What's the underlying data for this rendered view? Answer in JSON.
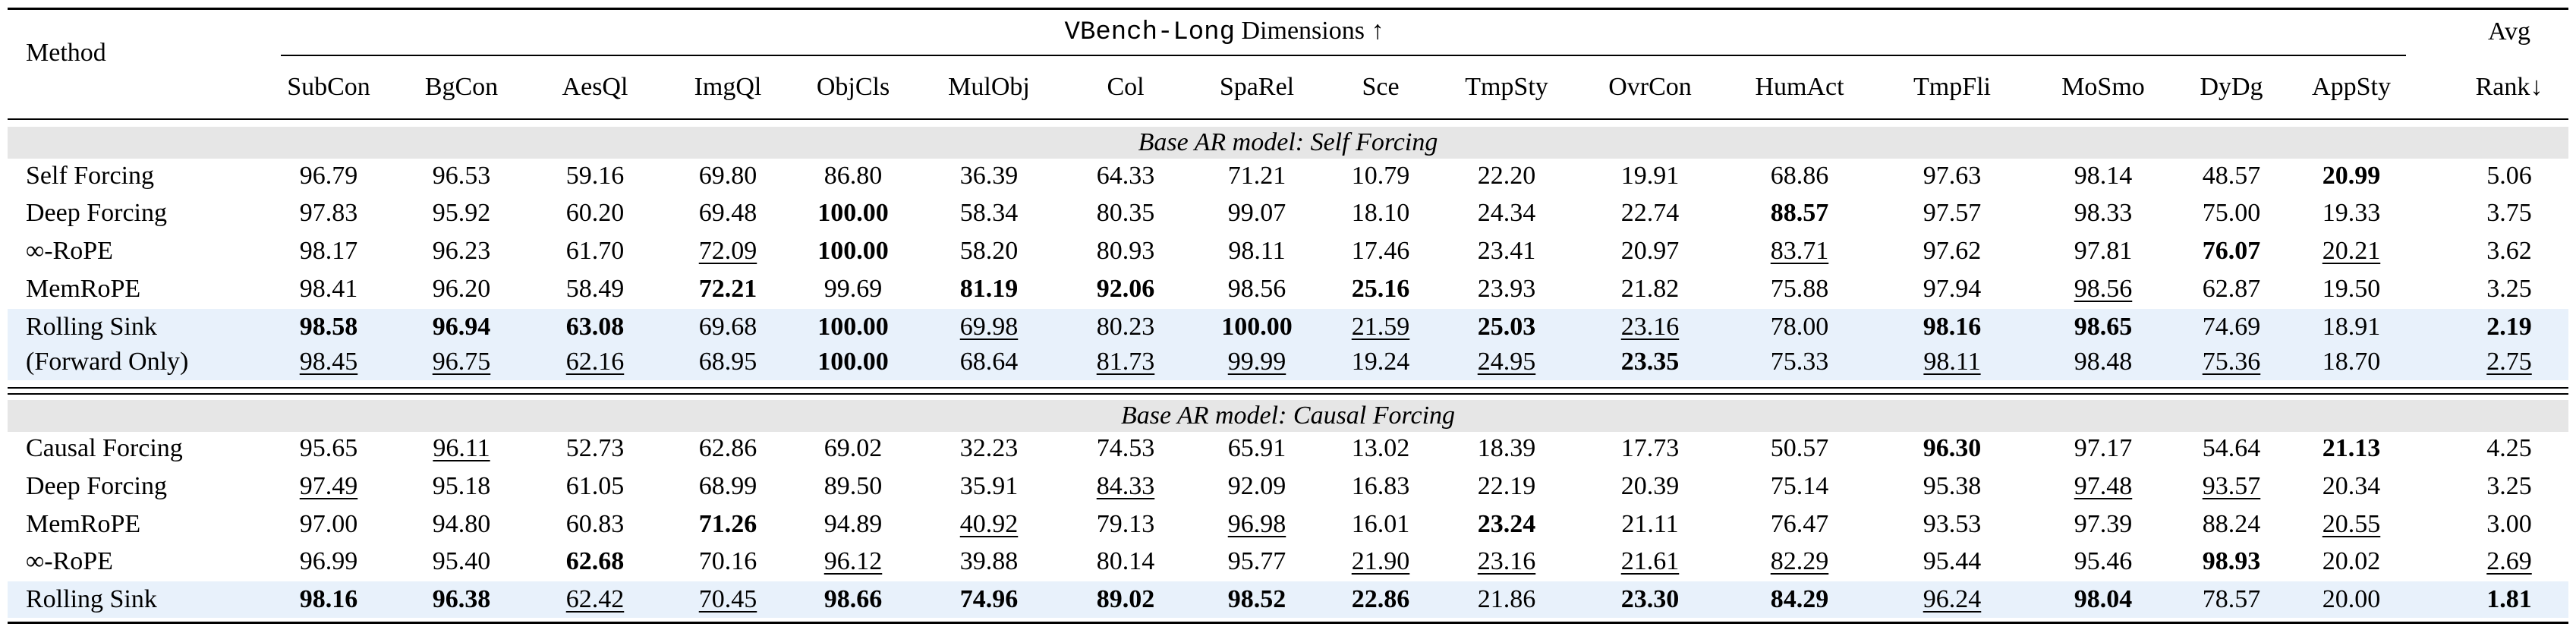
{
  "header": {
    "method": "Method",
    "group_mono": "VBench-Long",
    "group_rest": "Dimensions ↑",
    "avg_line1": "Avg",
    "avg_line2": "Rank↓",
    "columns": [
      "SubCon",
      "BgCon",
      "AesQl",
      "ImgQl",
      "ObjCls",
      "MulObj",
      "Col",
      "SpaRel",
      "Sce",
      "TmpSty",
      "OvrCon",
      "HumAct",
      "TmpFli",
      "MoSmo",
      "DyDg",
      "AppSty"
    ]
  },
  "sections": [
    {
      "title": "Base AR model: Self Forcing",
      "rows": [
        {
          "method": "Self Forcing",
          "values": [
            "96.79",
            "96.53",
            "59.16",
            "69.80",
            "86.80",
            "36.39",
            "64.33",
            "71.21",
            "10.79",
            "22.20",
            "19.91",
            "68.86",
            "97.63",
            "98.14",
            "48.57",
            "20.99"
          ],
          "avg_rank": "5.06",
          "highlight": false,
          "emphasis": [
            "normal",
            "normal",
            "normal",
            "normal",
            "normal",
            "normal",
            "normal",
            "normal",
            "normal",
            "normal",
            "normal",
            "normal",
            "normal",
            "normal",
            "normal",
            "bold",
            "normal"
          ]
        },
        {
          "method": "Deep Forcing",
          "values": [
            "97.83",
            "95.92",
            "60.20",
            "69.48",
            "100.00",
            "58.34",
            "80.35",
            "99.07",
            "18.10",
            "24.34",
            "22.74",
            "88.57",
            "97.57",
            "98.33",
            "75.00",
            "19.33"
          ],
          "avg_rank": "3.75",
          "highlight": false,
          "emphasis": [
            "normal",
            "normal",
            "normal",
            "normal",
            "bold",
            "normal",
            "normal",
            "normal",
            "normal",
            "normal",
            "normal",
            "bold",
            "normal",
            "normal",
            "normal",
            "normal",
            "normal"
          ]
        },
        {
          "method": "∞-RoPE",
          "values": [
            "98.17",
            "96.23",
            "61.70",
            "72.09",
            "100.00",
            "58.20",
            "80.93",
            "98.11",
            "17.46",
            "23.41",
            "20.97",
            "83.71",
            "97.62",
            "97.81",
            "76.07",
            "20.21"
          ],
          "avg_rank": "3.62",
          "highlight": false,
          "emphasis": [
            "normal",
            "normal",
            "normal",
            "underline",
            "bold",
            "normal",
            "normal",
            "normal",
            "normal",
            "normal",
            "normal",
            "underline",
            "normal",
            "normal",
            "bold",
            "underline",
            "normal"
          ]
        },
        {
          "method": "MemRoPE",
          "values": [
            "98.41",
            "96.20",
            "58.49",
            "72.21",
            "99.69",
            "81.19",
            "92.06",
            "98.56",
            "25.16",
            "23.93",
            "21.82",
            "75.88",
            "97.94",
            "98.56",
            "62.87",
            "19.50"
          ],
          "avg_rank": "3.25",
          "highlight": false,
          "emphasis": [
            "normal",
            "normal",
            "normal",
            "bold",
            "normal",
            "bold",
            "bold",
            "normal",
            "bold",
            "normal",
            "normal",
            "normal",
            "normal",
            "underline",
            "normal",
            "normal",
            "normal"
          ]
        },
        {
          "method": "Rolling Sink",
          "values": [
            "98.58",
            "96.94",
            "63.08",
            "69.68",
            "100.00",
            "69.98",
            "80.23",
            "100.00",
            "21.59",
            "25.03",
            "23.16",
            "78.00",
            "98.16",
            "98.65",
            "74.69",
            "18.91"
          ],
          "avg_rank": "2.19",
          "highlight": true,
          "emphasis": [
            "bold",
            "bold",
            "bold",
            "normal",
            "bold",
            "underline",
            "normal",
            "bold",
            "underline",
            "bold",
            "underline",
            "normal",
            "bold",
            "bold",
            "normal",
            "normal",
            "bold"
          ]
        },
        {
          "method": "(Forward Only)",
          "values": [
            "98.45",
            "96.75",
            "62.16",
            "68.95",
            "100.00",
            "68.64",
            "81.73",
            "99.99",
            "19.24",
            "24.95",
            "23.35",
            "75.33",
            "98.11",
            "98.48",
            "75.36",
            "18.70"
          ],
          "avg_rank": "2.75",
          "highlight": true,
          "emphasis": [
            "underline",
            "underline",
            "underline",
            "normal",
            "bold",
            "normal",
            "underline",
            "underline",
            "normal",
            "underline",
            "bold",
            "normal",
            "underline",
            "normal",
            "underline",
            "normal",
            "underline"
          ]
        }
      ]
    },
    {
      "title": "Base AR model: Causal Forcing",
      "rows": [
        {
          "method": "Causal Forcing",
          "values": [
            "95.65",
            "96.11",
            "52.73",
            "62.86",
            "69.02",
            "32.23",
            "74.53",
            "65.91",
            "13.02",
            "18.39",
            "17.73",
            "50.57",
            "96.30",
            "97.17",
            "54.64",
            "21.13"
          ],
          "avg_rank": "4.25",
          "highlight": false,
          "emphasis": [
            "normal",
            "underline",
            "normal",
            "normal",
            "normal",
            "normal",
            "normal",
            "normal",
            "normal",
            "normal",
            "normal",
            "normal",
            "bold",
            "normal",
            "normal",
            "bold",
            "normal"
          ]
        },
        {
          "method": "Deep Forcing",
          "values": [
            "97.49",
            "95.18",
            "61.05",
            "68.99",
            "89.50",
            "35.91",
            "84.33",
            "92.09",
            "16.83",
            "22.19",
            "20.39",
            "75.14",
            "95.38",
            "97.48",
            "93.57",
            "20.34"
          ],
          "avg_rank": "3.25",
          "highlight": false,
          "emphasis": [
            "underline",
            "normal",
            "normal",
            "normal",
            "normal",
            "normal",
            "underline",
            "normal",
            "normal",
            "normal",
            "normal",
            "normal",
            "normal",
            "underline",
            "underline",
            "normal",
            "normal"
          ]
        },
        {
          "method": "MemRoPE",
          "values": [
            "97.00",
            "94.80",
            "60.83",
            "71.26",
            "94.89",
            "40.92",
            "79.13",
            "96.98",
            "16.01",
            "23.24",
            "21.11",
            "76.47",
            "93.53",
            "97.39",
            "88.24",
            "20.55"
          ],
          "avg_rank": "3.00",
          "highlight": false,
          "emphasis": [
            "normal",
            "normal",
            "normal",
            "bold",
            "normal",
            "underline",
            "normal",
            "underline",
            "normal",
            "bold",
            "normal",
            "normal",
            "normal",
            "normal",
            "normal",
            "underline",
            "normal"
          ]
        },
        {
          "method": "∞-RoPE",
          "values": [
            "96.99",
            "95.40",
            "62.68",
            "70.16",
            "96.12",
            "39.88",
            "80.14",
            "95.77",
            "21.90",
            "23.16",
            "21.61",
            "82.29",
            "95.44",
            "95.46",
            "98.93",
            "20.02"
          ],
          "avg_rank": "2.69",
          "highlight": false,
          "emphasis": [
            "normal",
            "normal",
            "bold",
            "normal",
            "underline",
            "normal",
            "normal",
            "normal",
            "underline",
            "underline",
            "underline",
            "underline",
            "normal",
            "normal",
            "bold",
            "normal",
            "underline"
          ]
        },
        {
          "method": "Rolling Sink",
          "values": [
            "98.16",
            "96.38",
            "62.42",
            "70.45",
            "98.66",
            "74.96",
            "89.02",
            "98.52",
            "22.86",
            "21.86",
            "23.30",
            "84.29",
            "96.24",
            "98.04",
            "78.57",
            "20.00"
          ],
          "avg_rank": "1.81",
          "highlight": true,
          "emphasis": [
            "bold",
            "bold",
            "underline",
            "underline",
            "bold",
            "bold",
            "bold",
            "bold",
            "bold",
            "normal",
            "bold",
            "bold",
            "underline",
            "bold",
            "normal",
            "normal",
            "bold"
          ]
        }
      ]
    }
  ]
}
